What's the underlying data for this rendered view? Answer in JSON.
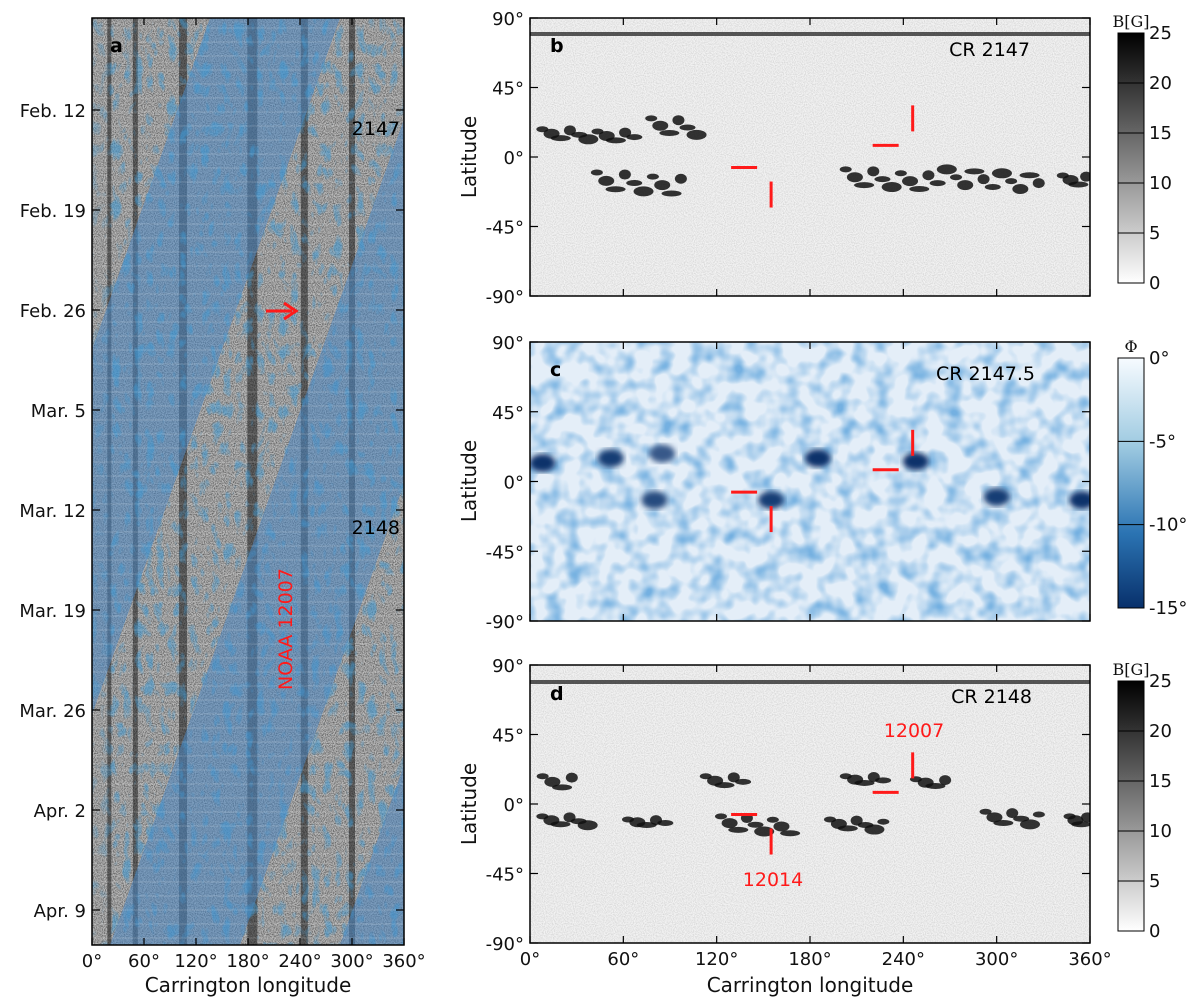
{
  "chart_data": [
    {
      "panel": "a",
      "type": "heatmap",
      "title": "",
      "xlabel": "Carrington longitude",
      "ylabel": "",
      "xlim": [
        0,
        360
      ],
      "x_ticks": [
        "0°",
        "60°",
        "120°",
        "180°",
        "240°",
        "300°",
        "360°"
      ],
      "y_ticks": [
        "Feb. 12",
        "Feb. 19",
        "Feb. 26",
        "Mar. 5",
        "Mar. 12",
        "Mar. 19",
        "Mar. 26",
        "Apr. 2",
        "Apr. 9"
      ],
      "annotations": [
        {
          "text": "2147",
          "kind": "rotation"
        },
        {
          "text": "2148",
          "kind": "rotation"
        },
        {
          "text": "NOAA 12007",
          "kind": "active-region",
          "color": "#ff1a1a"
        }
      ],
      "arrow": {
        "date": "Feb. 26",
        "longitude": 240,
        "color": "#ff1a1a"
      }
    },
    {
      "panel": "b",
      "type": "heatmap",
      "title": "CR 2147",
      "xlabel": "",
      "ylabel": "Latitude",
      "xlim": [
        0,
        360
      ],
      "ylim": [
        -90,
        90
      ],
      "y_ticks": [
        "90°",
        "45°",
        "0°",
        "-45°",
        "-90°"
      ],
      "colorbar": {
        "title": "B[G]",
        "min": 0,
        "max": 25,
        "ticks": [
          "25",
          "20",
          "15",
          "10",
          "5",
          "0"
        ],
        "colormap": "gray_r"
      },
      "markers": [
        {
          "lon": 246,
          "lat": 14,
          "kind": "NOAA 12007"
        },
        {
          "lon": 155,
          "lat": -12,
          "kind": "NOAA 12014"
        }
      ],
      "activity_belts": [
        {
          "lon": [
            5,
            70
          ],
          "lat": [
            10,
            18
          ]
        },
        {
          "lon": [
            75,
            110
          ],
          "lat": [
            12,
            25
          ]
        },
        {
          "lon": [
            40,
            100
          ],
          "lat": [
            -25,
            -10
          ]
        },
        {
          "lon": [
            200,
            330
          ],
          "lat": [
            -22,
            -8
          ]
        },
        {
          "lon": [
            340,
            360
          ],
          "lat": [
            -20,
            -12
          ]
        }
      ]
    },
    {
      "panel": "c",
      "type": "heatmap",
      "title": "CR 2147.5",
      "xlabel": "",
      "ylabel": "Latitude",
      "xlim": [
        0,
        360
      ],
      "ylim": [
        -90,
        90
      ],
      "y_ticks": [
        "90°",
        "45°",
        "0°",
        "-45°",
        "-90°"
      ],
      "colorbar": {
        "title": "Φ",
        "min": -15,
        "max": 0,
        "ticks": [
          "0°",
          "-5°",
          "-10°",
          "-15°"
        ],
        "colormap": "Blues_r"
      },
      "markers": [
        {
          "lon": 246,
          "lat": 14,
          "kind": "NOAA 12007"
        },
        {
          "lon": 155,
          "lat": -12,
          "kind": "NOAA 12014"
        }
      ],
      "blobs": [
        {
          "lon": 8,
          "lat": 12,
          "phi": -15
        },
        {
          "lon": 52,
          "lat": 15,
          "phi": -14
        },
        {
          "lon": 85,
          "lat": 18,
          "phi": -12
        },
        {
          "lon": 185,
          "lat": 15,
          "phi": -15
        },
        {
          "lon": 248,
          "lat": 13,
          "phi": -15
        },
        {
          "lon": 80,
          "lat": -12,
          "phi": -13
        },
        {
          "lon": 155,
          "lat": -12,
          "phi": -14
        },
        {
          "lon": 300,
          "lat": -10,
          "phi": -14
        },
        {
          "lon": 355,
          "lat": -12,
          "phi": -15
        }
      ]
    },
    {
      "panel": "d",
      "type": "heatmap",
      "title": "CR 2148",
      "xlabel": "Carrington longitude",
      "ylabel": "Latitude",
      "xlim": [
        0,
        360
      ],
      "ylim": [
        -90,
        90
      ],
      "x_ticks": [
        "0°",
        "60°",
        "120°",
        "180°",
        "240°",
        "300°",
        "360°"
      ],
      "y_ticks": [
        "90°",
        "45°",
        "0°",
        "-45°",
        "-90°"
      ],
      "colorbar": {
        "title": "B[G]",
        "min": 0,
        "max": 25,
        "ticks": [
          "25",
          "20",
          "15",
          "10",
          "5",
          "0"
        ],
        "colormap": "gray_r"
      },
      "markers": [
        {
          "lon": 246,
          "lat": 14,
          "kind": "NOAA 12007"
        },
        {
          "lon": 155,
          "lat": -12,
          "kind": "NOAA 12014"
        }
      ],
      "labels": [
        {
          "text": "12007",
          "color": "#ff1a1a"
        },
        {
          "text": "12014",
          "color": "#ff1a1a"
        }
      ]
    }
  ],
  "colors": {
    "accent_red": "#ff1a1a",
    "blue_dark": "#0b3c7a",
    "blue_light": "#dbe9f5"
  }
}
